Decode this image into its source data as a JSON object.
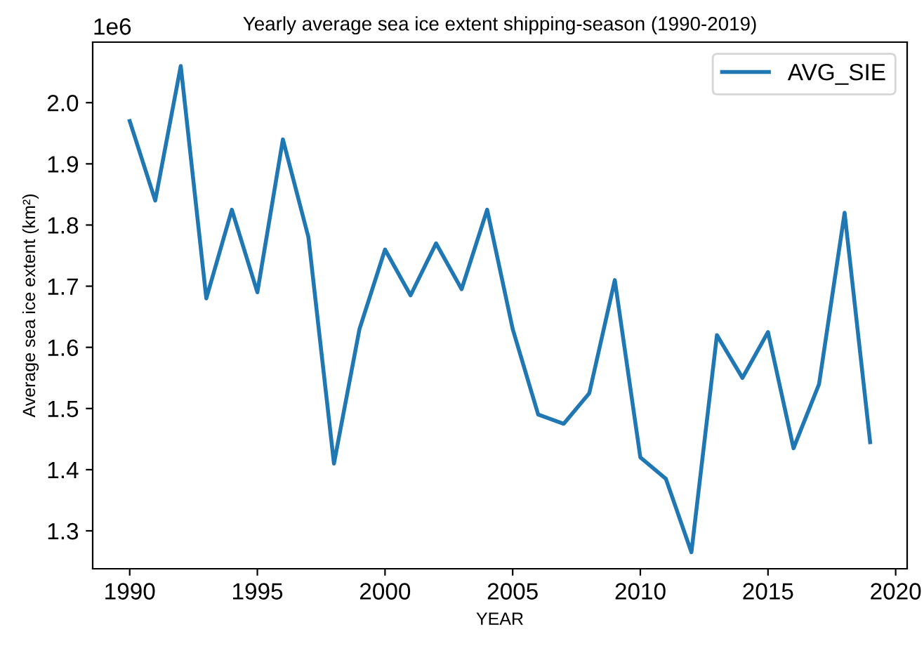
{
  "chart_data": {
    "type": "line",
    "title": "Yearly average sea ice extent shipping-season (1990-2019)",
    "xlabel": "YEAR",
    "ylabel": "Average sea ice extent (km²)",
    "x": [
      1990,
      1991,
      1992,
      1993,
      1994,
      1995,
      1996,
      1997,
      1998,
      1999,
      2000,
      2001,
      2002,
      2003,
      2004,
      2005,
      2006,
      2007,
      2008,
      2009,
      2010,
      2011,
      2012,
      2013,
      2014,
      2015,
      2016,
      2017,
      2018,
      2019
    ],
    "series": [
      {
        "name": "AVG_SIE",
        "color": "#1f77b4",
        "values": [
          1.97,
          1.84,
          2.06,
          1.68,
          1.825,
          1.69,
          1.94,
          1.78,
          1.41,
          1.63,
          1.76,
          1.685,
          1.77,
          1.695,
          1.825,
          1.63,
          1.49,
          1.475,
          1.525,
          1.71,
          1.42,
          1.385,
          1.265,
          1.62,
          1.55,
          1.625,
          1.435,
          1.54,
          1.82,
          1.445
        ]
      }
    ],
    "xlim": [
      1988.55,
      2020.45
    ],
    "xticks": [
      1990,
      1995,
      2000,
      2005,
      2010,
      2015,
      2020
    ],
    "ylim": [
      1.238,
      2.099
    ],
    "yticks": [
      1.3,
      1.4,
      1.5,
      1.6,
      1.7,
      1.8,
      1.9,
      {
        "value": 2,
        "label": "2.0"
      }
    ],
    "annotations": [
      "1e6"
    ],
    "legend": "top right",
    "grid": false,
    "line_style": "solid",
    "marker": "none"
  }
}
